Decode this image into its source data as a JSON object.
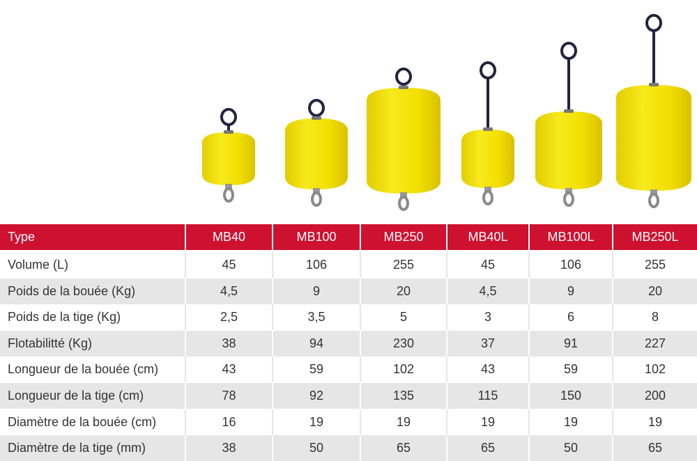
{
  "table": {
    "header": [
      "Type",
      "MB40",
      "MB100",
      "MB250",
      "MB40L",
      "MB100L",
      "MB250L"
    ],
    "rows": [
      [
        "Volume (L)",
        "45",
        "106",
        "255",
        "45",
        "106",
        "255"
      ],
      [
        "Poids de la bouée (Kg)",
        "4,5",
        "9",
        "20",
        "4,5",
        "9",
        "20"
      ],
      [
        "Poids de la tige (Kg)",
        "2,5",
        "3,5",
        "5",
        "3",
        "6",
        "8"
      ],
      [
        "Flotabilitté (Kg)",
        "38",
        "94",
        "230",
        "37",
        "91",
        "227"
      ],
      [
        "Longueur de la bouée (cm)",
        "43",
        "59",
        "102",
        "43",
        "59",
        "102"
      ],
      [
        "Longueur de la tige (cm)",
        "78",
        "92",
        "135",
        "115",
        "150",
        "200"
      ],
      [
        "Diamètre de la bouée (cm)",
        "16",
        "19",
        "19",
        "19",
        "19",
        "19"
      ],
      [
        "Diamètre de la tige (mm)",
        "38",
        "50",
        "65",
        "65",
        "50",
        "65"
      ]
    ]
  }
}
